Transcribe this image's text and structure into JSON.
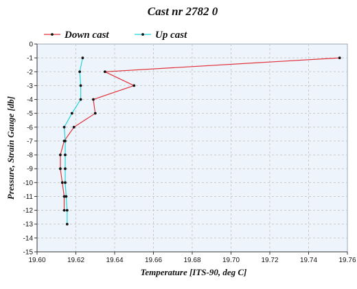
{
  "chart_data": {
    "type": "line",
    "title": "Cast nr 2782 0",
    "xlabel": "Temperature [ITS-90, deg C]",
    "ylabel": "Pressure, Strain Gauge [db]",
    "xlim": [
      19.6,
      19.76
    ],
    "ylim": [
      -15,
      0
    ],
    "x_ticks": [
      "19.60",
      "19.62",
      "19.64",
      "19.66",
      "19.68",
      "19.70",
      "19.72",
      "19.74",
      "19.76"
    ],
    "y_ticks": [
      "0",
      "-1",
      "-2",
      "-3",
      "-4",
      "-5",
      "-6",
      "-7",
      "-8",
      "-9",
      "-10",
      "-11",
      "-12",
      "-13",
      "-14",
      "-15"
    ],
    "grid": true,
    "legend_position": "top-left",
    "series": [
      {
        "name": "Down cast",
        "color": "#e0303a",
        "points": [
          {
            "x": 19.756,
            "y": -1
          },
          {
            "x": 19.635,
            "y": -2
          },
          {
            "x": 19.65,
            "y": -3
          },
          {
            "x": 19.629,
            "y": -4
          },
          {
            "x": 19.63,
            "y": -5
          },
          {
            "x": 19.619,
            "y": -6
          },
          {
            "x": 19.614,
            "y": -7
          },
          {
            "x": 19.612,
            "y": -8
          },
          {
            "x": 19.612,
            "y": -9
          },
          {
            "x": 19.613,
            "y": -10
          },
          {
            "x": 19.614,
            "y": -11
          },
          {
            "x": 19.614,
            "y": -12
          }
        ]
      },
      {
        "name": "Up cast",
        "color": "#22d3d8",
        "points": [
          {
            "x": 19.6235,
            "y": -1
          },
          {
            "x": 19.622,
            "y": -2
          },
          {
            "x": 19.6225,
            "y": -3
          },
          {
            "x": 19.6225,
            "y": -4
          },
          {
            "x": 19.618,
            "y": -5
          },
          {
            "x": 19.614,
            "y": -6
          },
          {
            "x": 19.6145,
            "y": -7
          },
          {
            "x": 19.6145,
            "y": -8
          },
          {
            "x": 19.6145,
            "y": -9
          },
          {
            "x": 19.6145,
            "y": -10
          },
          {
            "x": 19.615,
            "y": -11
          },
          {
            "x": 19.6155,
            "y": -12
          },
          {
            "x": 19.6155,
            "y": -13
          }
        ]
      }
    ]
  }
}
